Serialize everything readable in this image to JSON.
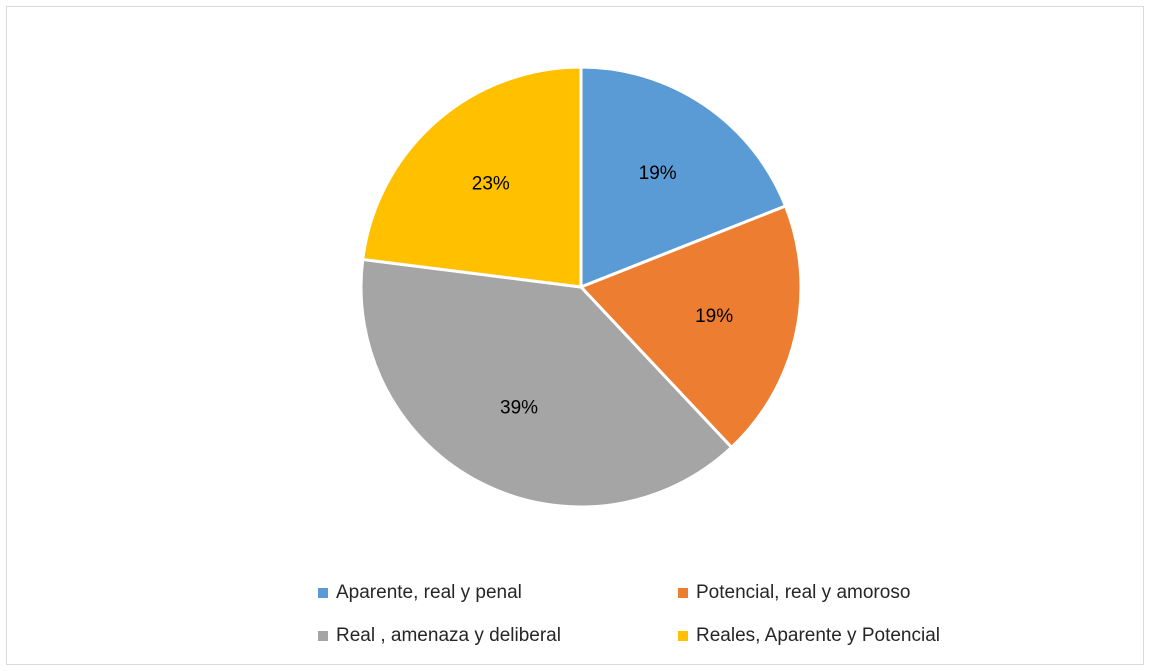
{
  "chart_data": {
    "type": "pie",
    "title": "",
    "slices": [
      {
        "label": "Aparente, real y penal",
        "value": 19,
        "display": "19%",
        "color": "#5b9bd5"
      },
      {
        "label": "Potencial, real y amoroso",
        "value": 19,
        "display": "19%",
        "color": "#ed7d31"
      },
      {
        "label": "Real , amenaza  y deliberal",
        "value": 39,
        "display": "39%",
        "color": "#a5a5a5"
      },
      {
        "label": "Reales, Aparente y Potencial",
        "value": 23,
        "display": "23%",
        "color": "#ffc000"
      }
    ],
    "legend_position": "bottom"
  }
}
